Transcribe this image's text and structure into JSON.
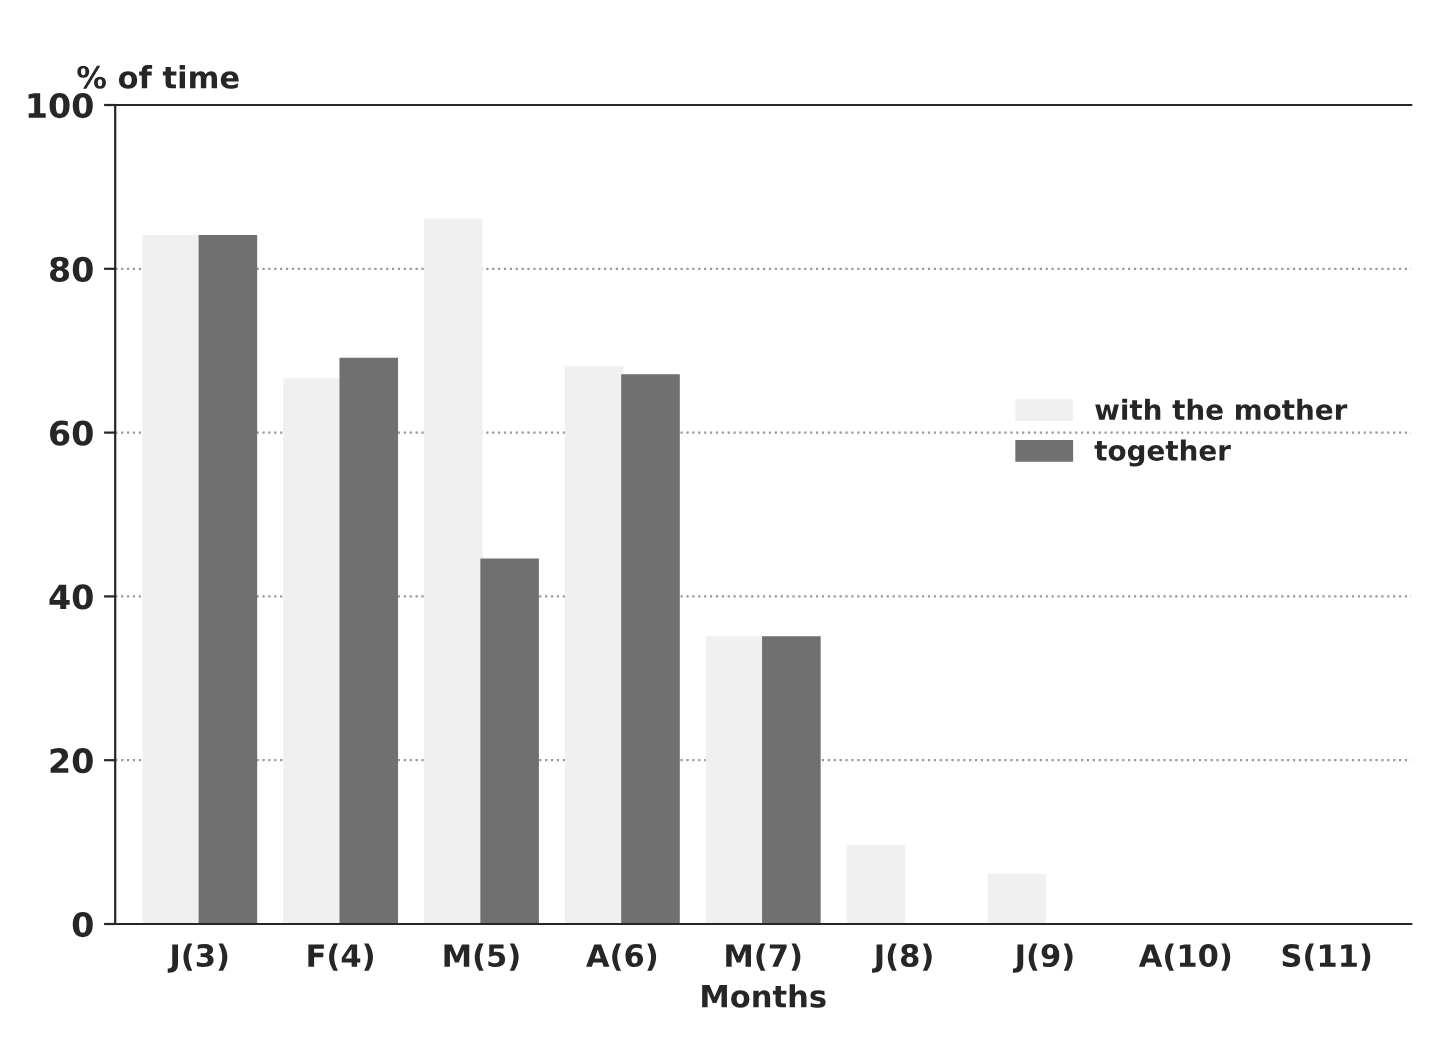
{
  "chart_data": {
    "type": "bar",
    "ylabel": "% of time",
    "xlabel": "Months",
    "categories": [
      "J(3)",
      "F(4)",
      "M(5)",
      "A(6)",
      "M(7)",
      "J(8)",
      "J(9)",
      "A(10)",
      "S(11)"
    ],
    "series": [
      {
        "name": "with the mother",
        "color": "#f0f0f0",
        "values": [
          84,
          66.5,
          86,
          68,
          35,
          9.5,
          6,
          0,
          0
        ]
      },
      {
        "name": "together",
        "color": "#707070",
        "values": [
          84,
          69,
          44.5,
          67,
          35,
          0,
          0,
          0,
          0
        ]
      }
    ],
    "ylim": [
      0,
      100
    ],
    "yticks": [
      0,
      20,
      40,
      60,
      80,
      100
    ],
    "grid": "y",
    "legend": "right"
  }
}
